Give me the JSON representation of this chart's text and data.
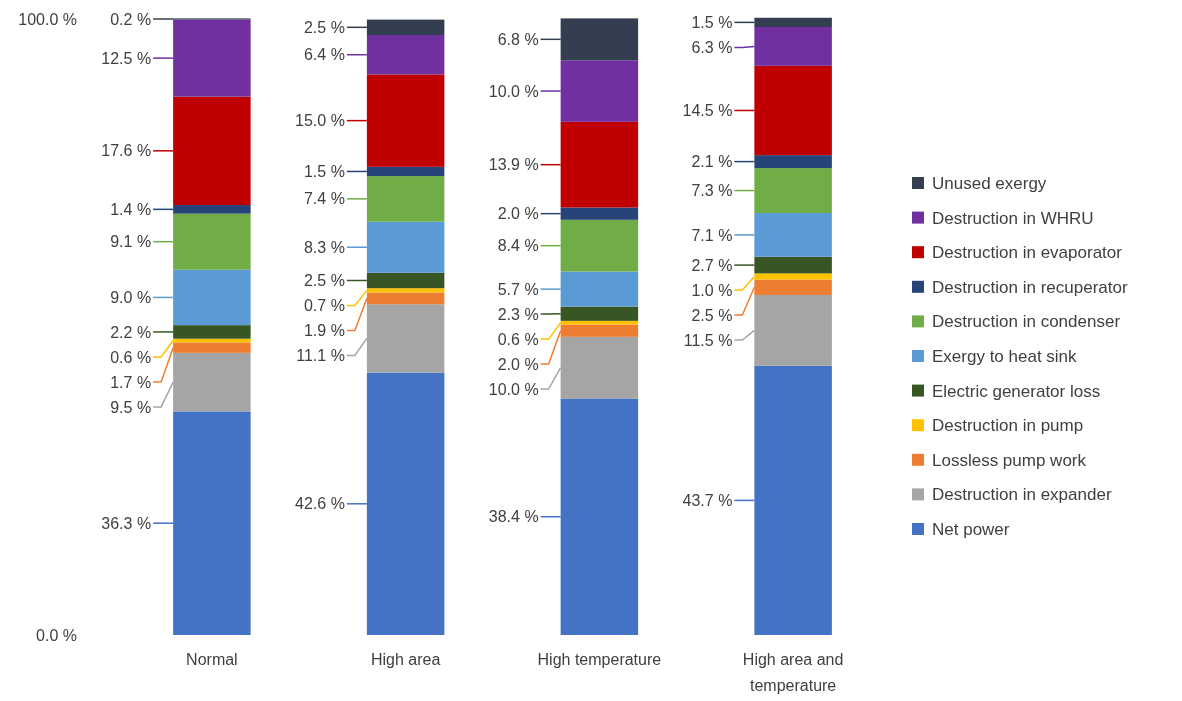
{
  "chart_data": {
    "type": "bar",
    "stacked": true,
    "categories": [
      "Normal",
      "High area",
      "High temperature",
      "High area and temperature"
    ],
    "ylim": [
      0,
      100
    ],
    "yticks": [
      {
        "value": 0,
        "label": "0.0 %"
      },
      {
        "value": 100,
        "label": "100.0 %"
      }
    ],
    "grid": false,
    "legend": "right",
    "series": [
      {
        "name": "Net power",
        "color": "#4472c4",
        "values": [
          36.3,
          42.6,
          38.4,
          43.7
        ],
        "value_labels": [
          "36.3 %",
          "42.6 %",
          "38.4 %",
          "43.7 %"
        ]
      },
      {
        "name": "Destruction in expander",
        "color": "#a5a5a5",
        "values": [
          9.5,
          11.1,
          10.0,
          11.5
        ],
        "value_labels": [
          "9.5 %",
          "11.1 %",
          "10.0 %",
          "11.5 %"
        ]
      },
      {
        "name": "Lossless pump work",
        "color": "#ed7d31",
        "values": [
          1.7,
          1.9,
          2.0,
          2.5
        ],
        "value_labels": [
          "1.7 %",
          "1.9 %",
          "2.0 %",
          "2.5 %"
        ]
      },
      {
        "name": "Destruction in pump",
        "color": "#ffc000",
        "values": [
          0.6,
          0.7,
          0.6,
          1.0
        ],
        "value_labels": [
          "0.6 %",
          "0.7 %",
          "0.6 %",
          "1.0 %"
        ]
      },
      {
        "name": "Electric generator loss",
        "color": "#375623",
        "values": [
          2.2,
          2.5,
          2.3,
          2.7
        ],
        "value_labels": [
          "2.2 %",
          "2.5 %",
          "2.3 %",
          "2.7 %"
        ]
      },
      {
        "name": "Exergy to heat sink",
        "color": "#5b9bd5",
        "values": [
          9.0,
          8.3,
          5.7,
          7.1
        ],
        "value_labels": [
          "9.0 %",
          "8.3 %",
          "5.7 %",
          "7.1 %"
        ]
      },
      {
        "name": "Destruction in condenser",
        "color": "#70ad47",
        "values": [
          9.1,
          7.4,
          8.4,
          7.3
        ],
        "value_labels": [
          "9.1 %",
          "7.4 %",
          "8.4 %",
          "7.3 %"
        ]
      },
      {
        "name": "Destruction in recuperator",
        "color": "#264478",
        "values": [
          1.4,
          1.5,
          2.0,
          2.1
        ],
        "value_labels": [
          "1.4 %",
          "1.5 %",
          "2.0 %",
          "2.1 %"
        ]
      },
      {
        "name": "Destruction in evaporator",
        "color": "#c00000",
        "values": [
          17.6,
          15.0,
          13.9,
          14.5
        ],
        "value_labels": [
          "17.6 %",
          "15.0 %",
          "13.9 %",
          "14.5 %"
        ]
      },
      {
        "name": "Destruction in WHRU",
        "color": "#7030a0",
        "values": [
          12.5,
          6.4,
          10.0,
          6.3
        ],
        "value_labels": [
          "12.5 %",
          "6.4 %",
          "10.0 %",
          "6.3 %"
        ]
      },
      {
        "name": "Unused exergy",
        "color": "#333f50",
        "values": [
          0.2,
          2.5,
          6.8,
          1.5
        ],
        "value_labels": [
          "0.2 %",
          "2.5 %",
          "6.8 %",
          "1.5 %"
        ]
      }
    ]
  }
}
